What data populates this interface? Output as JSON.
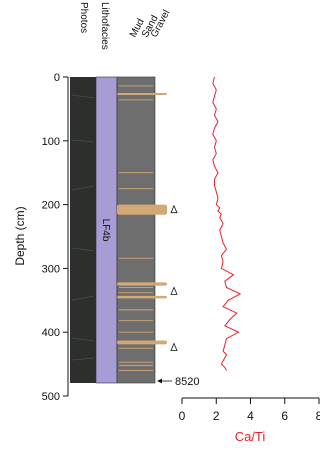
{
  "figure": {
    "column_headers": [
      "Photos",
      "Lithofacies",
      "Mud",
      "Sand",
      "Gravel"
    ],
    "facies_label": "LF4b",
    "age_annotation": "8520",
    "depth_axis": {
      "label": "Depth (cm)",
      "ticks": [
        "0",
        "100",
        "200",
        "300",
        "400",
        "500"
      ],
      "min": 0,
      "max": 500
    },
    "cati_axis": {
      "label": "Ca/Ti",
      "ticks": [
        "0",
        "2",
        "4",
        "6",
        "8"
      ],
      "min": 0,
      "max": 8
    },
    "colors": {
      "facies": "#a89cd4",
      "grain_bg": "#6e6e6e",
      "sand": "#d4a874",
      "cati_line": "#e8212b",
      "cati_label": "#e8212b",
      "photo": "#2c2f2c"
    }
  },
  "chart_data": {
    "type": "line",
    "xlabel": "Ca/Ti",
    "ylabel": "Depth (cm)",
    "xlim": [
      0,
      8
    ],
    "ylim": [
      0,
      500
    ],
    "y_reversed": true,
    "series": [
      {
        "x": [
          1.9,
          1.8,
          2.0,
          1.9,
          1.8,
          2.0,
          1.9,
          2.1,
          1.9,
          1.8,
          2.0,
          1.9,
          2.0,
          1.8,
          1.9,
          2.1,
          1.9,
          1.9,
          2.0,
          2.1,
          2.0,
          2.2,
          2.1,
          2.3,
          2.2,
          2.4,
          2.2,
          2.3,
          2.4,
          2.6,
          2.3,
          2.4,
          2.3,
          3.0,
          2.5,
          2.6,
          3.4,
          2.7,
          2.4,
          3.2,
          2.8,
          2.5,
          3.3,
          2.6,
          2.5,
          2.4,
          2.6,
          2.5,
          2.3,
          2.5,
          2.6
        ],
        "y": [
          0,
          10,
          20,
          30,
          40,
          50,
          60,
          70,
          80,
          90,
          100,
          110,
          120,
          130,
          140,
          150,
          160,
          170,
          180,
          190,
          200,
          205,
          210,
          215,
          220,
          230,
          240,
          250,
          260,
          270,
          280,
          290,
          300,
          310,
          320,
          330,
          340,
          350,
          360,
          370,
          380,
          390,
          400,
          410,
          420,
          430,
          435,
          440,
          450,
          455,
          460
        ]
      }
    ],
    "sand_beds_depth_cm": [
      [
        25,
        28
      ],
      [
        200,
        216
      ],
      [
        322,
        327
      ],
      [
        343,
        347
      ],
      [
        413,
        419
      ]
    ],
    "thin_sand_laminae_depth_cm": [
      14,
      36,
      150,
      175,
      284,
      330,
      338,
      365,
      382,
      400,
      425,
      447,
      452,
      460
    ],
    "grain_size_profile_x": [
      0.45,
      0.55,
      0.5,
      0.4,
      0.6,
      0.5,
      0.45,
      0.55,
      0.5,
      0.5,
      0.4
    ],
    "grain_size_profile_depth": [
      0,
      50,
      100,
      150,
      200,
      250,
      300,
      350,
      400,
      450,
      480
    ],
    "core_bottom_cm": 480,
    "dated_depth_cm": 477,
    "triangle_markers_depth_cm": [
      208,
      336,
      424
    ]
  }
}
